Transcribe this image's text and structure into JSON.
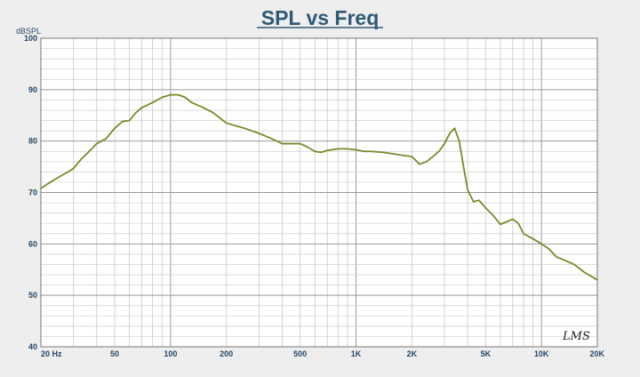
{
  "chart_data": {
    "type": "line",
    "title": "SPL vs Freq",
    "ylabel": "dBSPL",
    "xlabel": "",
    "x_scale": "log",
    "xlim": [
      20,
      20000
    ],
    "ylim": [
      40,
      100
    ],
    "grid": true,
    "y_ticks": [
      40,
      50,
      60,
      70,
      80,
      90,
      100
    ],
    "x_tick_values": [
      20,
      50,
      100,
      200,
      500,
      1000,
      2000,
      5000,
      10000,
      20000
    ],
    "x_tick_labels": [
      "20 Hz",
      "50",
      "100",
      "200",
      "500",
      "1K",
      "2K",
      "5K",
      "10K",
      "20K"
    ],
    "line_color": "#7a8a2a",
    "logo": "LMS",
    "series": [
      {
        "x": [
          20,
          22,
          25,
          28,
          30,
          33,
          36,
          40,
          45,
          50,
          55,
          60,
          65,
          70,
          75,
          80,
          90,
          100,
          110,
          120,
          130,
          150,
          170,
          200,
          250,
          300,
          350,
          400,
          450,
          500,
          550,
          600,
          650,
          700,
          800,
          900,
          1000,
          1100,
          1200,
          1400,
          1600,
          1800,
          2000,
          2200,
          2400,
          2600,
          2800,
          3000,
          3200,
          3400,
          3600,
          3800,
          4000,
          4300,
          4600,
          5000,
          5500,
          6000,
          7000,
          7500,
          8000,
          9000,
          10000,
          11000,
          12000,
          13000,
          15000,
          17000,
          20000
        ],
        "y": [
          70.8,
          71.8,
          73.0,
          74.0,
          74.7,
          76.5,
          77.8,
          79.5,
          80.5,
          82.5,
          83.8,
          84.0,
          85.5,
          86.5,
          87.0,
          87.5,
          88.5,
          89.0,
          89.0,
          88.5,
          87.5,
          86.5,
          85.5,
          83.5,
          82.5,
          81.5,
          80.5,
          79.5,
          79.5,
          79.5,
          78.8,
          78.0,
          77.8,
          78.2,
          78.5,
          78.5,
          78.3,
          78.0,
          78.0,
          77.8,
          77.5,
          77.2,
          77.0,
          75.5,
          76.0,
          77.0,
          78.0,
          79.5,
          81.5,
          82.5,
          80.0,
          75.0,
          70.5,
          68.2,
          68.5,
          67.0,
          65.5,
          63.8,
          64.8,
          64.0,
          62.0,
          61.0,
          60.0,
          59.0,
          57.5,
          57.0,
          56.0,
          54.5,
          53.0
        ]
      }
    ]
  }
}
